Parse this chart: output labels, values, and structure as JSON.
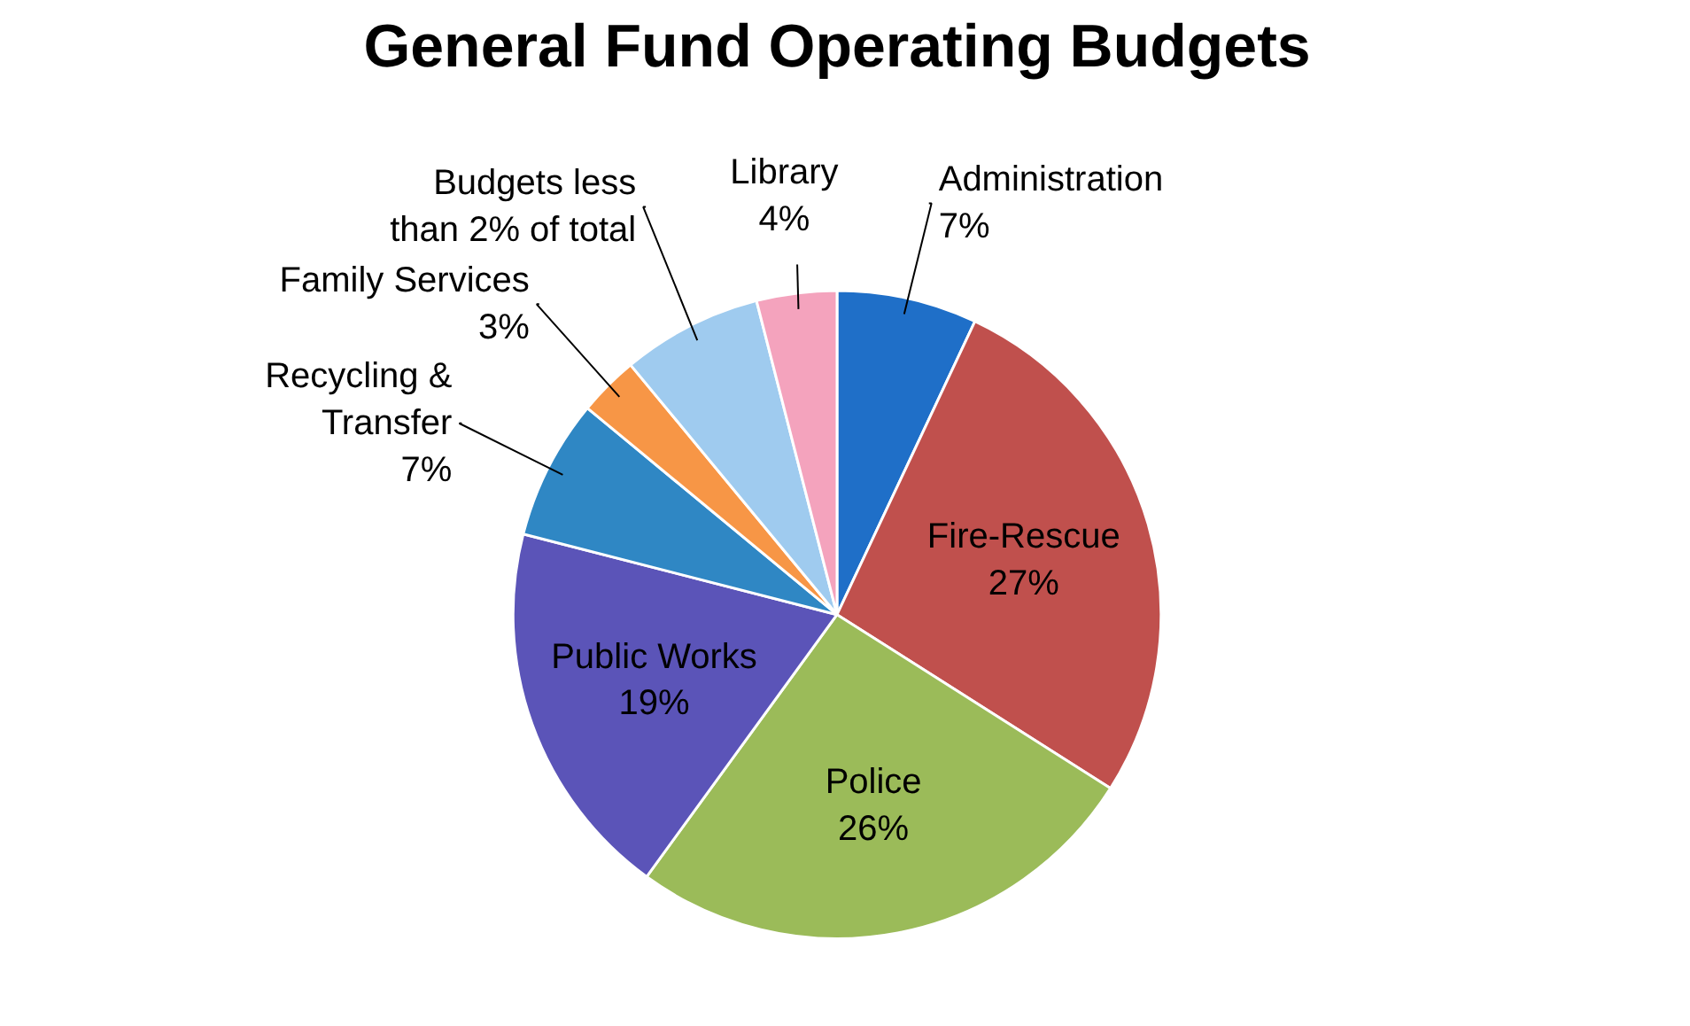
{
  "chart_data": {
    "type": "pie",
    "title": "General Fund Operating Budgets",
    "categories": [
      "Administration",
      "Fire-Rescue",
      "Police",
      "Public Works",
      "Recycling &\nTransfer",
      "Family Services",
      "Budgets less\nthan 2% of total",
      "Library"
    ],
    "values": [
      7,
      27,
      26,
      19,
      7,
      3,
      7,
      4
    ],
    "value_labels": [
      "7%",
      "27%",
      "26%",
      "19%",
      "7%",
      "3%",
      null,
      "4%"
    ],
    "colors": [
      "#1f6fc8",
      "#c0504d",
      "#9bbb59",
      "#5b54b8",
      "#2f87c4",
      "#f79646",
      "#9fcbef",
      "#f4a3bd"
    ]
  }
}
